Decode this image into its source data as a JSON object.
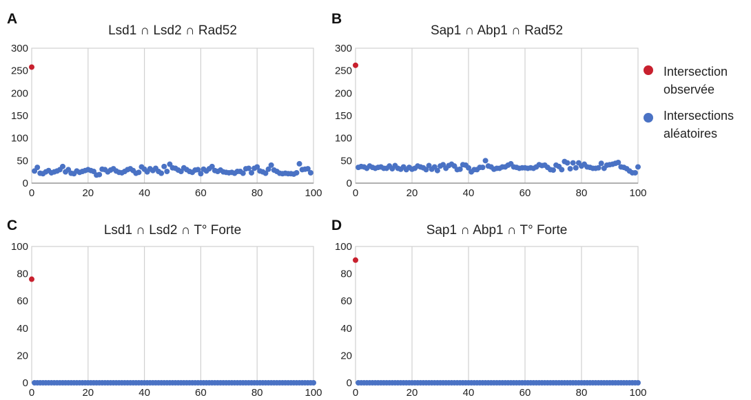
{
  "colors": {
    "observed": "#c8202e",
    "random": "#4a72c4",
    "grid": "#d0d0d0",
    "axis": "#999999"
  },
  "legend": {
    "placement": "right",
    "observed_line1": "Intersection",
    "observed_line2": "observée",
    "random_line1": "Intersections",
    "random_line2": "aléatoires"
  },
  "chart_data": [
    {
      "type": "scatter",
      "panel": "A",
      "title": "Lsd1 ∩ Lsd2 ∩ Rad52",
      "xlim": [
        0,
        100
      ],
      "ylim": [
        0,
        300
      ],
      "xticks": [
        "0",
        "20",
        "40",
        "60",
        "80",
        "100"
      ],
      "yticks": [
        "0",
        "50",
        "100",
        "150",
        "200",
        "250",
        "300"
      ],
      "grid": "vertical",
      "series": [
        {
          "role": "observed",
          "x": [
            0
          ],
          "y": [
            258
          ]
        },
        {
          "role": "random",
          "x_start": 1,
          "y": [
            27,
            35,
            22,
            21,
            25,
            28,
            23,
            25,
            27,
            30,
            37,
            25,
            30,
            22,
            21,
            27,
            24,
            26,
            28,
            30,
            28,
            26,
            18,
            19,
            31,
            30,
            25,
            29,
            32,
            27,
            24,
            23,
            26,
            30,
            32,
            28,
            22,
            24,
            36,
            31,
            25,
            32,
            28,
            33,
            26,
            22,
            37,
            26,
            42,
            34,
            33,
            29,
            26,
            34,
            30,
            26,
            24,
            29,
            30,
            21,
            31,
            27,
            32,
            37,
            28,
            26,
            29,
            25,
            24,
            23,
            24,
            22,
            26,
            26,
            22,
            32,
            33,
            23,
            33,
            36,
            27,
            25,
            22,
            31,
            40,
            29,
            26,
            22,
            21,
            22,
            21,
            21,
            20,
            23,
            43,
            30,
            31,
            32,
            23
          ]
        }
      ]
    },
    {
      "type": "scatter",
      "panel": "B",
      "title": "Sap1 ∩ Abp1 ∩ Rad52",
      "xlim": [
        0,
        100
      ],
      "ylim": [
        0,
        300
      ],
      "xticks": [
        "0",
        "20",
        "40",
        "60",
        "80",
        "100"
      ],
      "yticks": [
        "0",
        "50",
        "100",
        "150",
        "200",
        "250",
        "300"
      ],
      "grid": "vertical",
      "series": [
        {
          "role": "observed",
          "x": [
            0
          ],
          "y": [
            262
          ]
        },
        {
          "role": "random",
          "x_start": 1,
          "y": [
            35,
            37,
            36,
            33,
            38,
            35,
            33,
            35,
            36,
            33,
            33,
            38,
            32,
            39,
            33,
            31,
            36,
            30,
            35,
            31,
            33,
            38,
            36,
            34,
            30,
            39,
            31,
            36,
            28,
            38,
            41,
            33,
            39,
            42,
            38,
            30,
            31,
            41,
            40,
            34,
            25,
            30,
            30,
            35,
            35,
            50,
            38,
            36,
            31,
            33,
            33,
            36,
            36,
            40,
            43,
            36,
            35,
            33,
            34,
            34,
            33,
            34,
            33,
            36,
            41,
            39,
            40,
            35,
            30,
            29,
            40,
            37,
            30,
            48,
            45,
            32,
            45,
            34,
            45,
            38,
            42,
            36,
            35,
            33,
            33,
            34,
            44,
            33,
            40,
            41,
            42,
            44,
            46,
            36,
            35,
            32,
            27,
            23,
            23,
            36
          ]
        }
      ]
    },
    {
      "type": "scatter",
      "panel": "C",
      "title": "Lsd1 ∩ Lsd2 ∩ T° Forte",
      "xlim": [
        0,
        100
      ],
      "ylim": [
        0,
        100
      ],
      "xticks": [
        "0",
        "20",
        "40",
        "60",
        "80",
        "100"
      ],
      "yticks": [
        "0",
        "20",
        "40",
        "60",
        "80",
        "100"
      ],
      "grid": "vertical",
      "series": [
        {
          "role": "observed",
          "x": [
            0
          ],
          "y": [
            76
          ]
        },
        {
          "role": "random",
          "x_start": 1,
          "y": [
            0,
            0,
            0,
            0,
            0,
            0,
            0,
            0,
            0,
            0,
            0,
            0,
            0,
            0,
            0,
            0,
            0,
            0,
            0,
            0,
            0,
            0,
            0,
            0,
            0,
            0,
            0,
            0,
            0,
            0,
            0,
            0,
            0,
            0,
            0,
            0,
            0,
            0,
            0,
            0,
            0,
            0,
            0,
            0,
            0,
            0,
            0,
            0,
            0,
            0,
            0,
            0,
            0,
            0,
            0,
            0,
            0,
            0,
            0,
            0,
            0,
            0,
            0,
            0,
            0,
            0,
            0,
            0,
            0,
            0,
            0,
            0,
            0,
            0,
            0,
            0,
            0,
            0,
            0,
            0,
            0,
            0,
            0,
            0,
            0,
            0,
            0,
            0,
            0,
            0,
            0,
            0,
            0,
            0,
            0,
            0,
            0,
            0,
            0,
            0
          ]
        }
      ]
    },
    {
      "type": "scatter",
      "panel": "D",
      "title": "Sap1 ∩ Abp1 ∩ T° Forte",
      "xlim": [
        0,
        100
      ],
      "ylim": [
        0,
        100
      ],
      "xticks": [
        "0",
        "20",
        "40",
        "60",
        "80",
        "100"
      ],
      "yticks": [
        "0",
        "20",
        "40",
        "60",
        "80",
        "100"
      ],
      "grid": "vertical",
      "series": [
        {
          "role": "observed",
          "x": [
            0
          ],
          "y": [
            90
          ]
        },
        {
          "role": "random",
          "x_start": 1,
          "y": [
            0,
            0,
            0,
            0,
            0,
            0,
            0,
            0,
            0,
            0,
            0,
            0,
            0,
            0,
            0,
            0,
            0,
            0,
            0,
            0,
            0,
            0,
            0,
            0,
            0,
            0,
            0,
            0,
            0,
            0,
            0,
            0,
            0,
            0,
            0,
            0,
            0,
            0,
            0,
            0,
            0,
            0,
            0,
            0,
            0,
            0,
            0,
            0,
            0,
            0,
            0,
            0,
            0,
            0,
            0,
            0,
            0,
            0,
            0,
            0,
            0,
            0,
            0,
            0,
            0,
            0,
            0,
            0,
            0,
            0,
            0,
            0,
            0,
            0,
            0,
            0,
            0,
            0,
            0,
            0,
            0,
            0,
            0,
            0,
            0,
            0,
            0,
            0,
            0,
            0,
            0,
            0,
            0,
            0,
            0,
            0,
            0,
            0,
            0,
            0
          ]
        }
      ]
    }
  ]
}
